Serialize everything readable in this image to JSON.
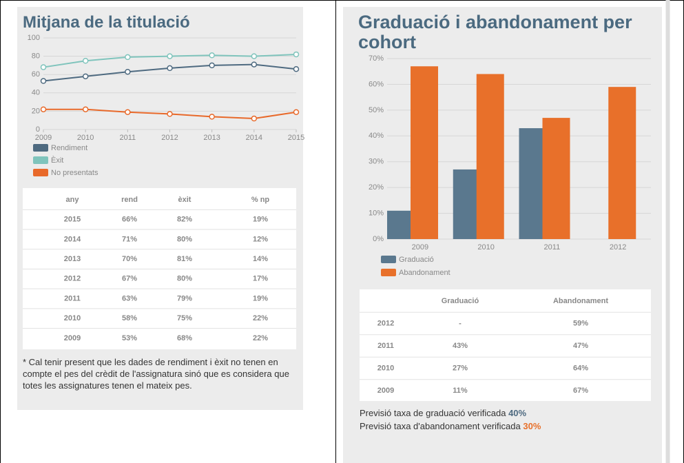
{
  "chart_data": [
    {
      "type": "line",
      "title": "Mitjana de la titulació",
      "x": [
        2009,
        2010,
        2011,
        2012,
        2013,
        2014,
        2015
      ],
      "xlim": [
        2009,
        2015
      ],
      "xticks": [
        2009,
        2010,
        2011,
        2012,
        2013,
        2014,
        2015
      ],
      "ylim": [
        0,
        100
      ],
      "yticks": [
        0,
        20,
        40,
        60,
        80,
        100
      ],
      "grid": true,
      "series": [
        {
          "name": "Rendiment",
          "color": "#4e6a80",
          "values": [
            53,
            58,
            63,
            67,
            70,
            71,
            66
          ]
        },
        {
          "name": "Èxit",
          "color": "#7fc4bc",
          "values": [
            68,
            75,
            79,
            80,
            81,
            80,
            82
          ]
        },
        {
          "name": "No presentats",
          "color": "#e8692a",
          "values": [
            22,
            22,
            19,
            17,
            14,
            12,
            19
          ]
        }
      ]
    },
    {
      "type": "bar",
      "title": "Graduació i abandonament per cohort",
      "categories": [
        "2009",
        "2010",
        "2011",
        "2012"
      ],
      "ylim": [
        0,
        70
      ],
      "yticks": [
        {
          "value": 0,
          "label": "0%"
        },
        {
          "value": 10,
          "label": "10%"
        },
        {
          "value": 20,
          "label": "20%"
        },
        {
          "value": 30,
          "label": "30%"
        },
        {
          "value": 40,
          "label": "40%"
        },
        {
          "value": 50,
          "label": "50%"
        },
        {
          "value": 60,
          "label": "60%"
        },
        {
          "value": 70,
          "label": "70%"
        }
      ],
      "grid": true,
      "series": [
        {
          "name": "Graduació",
          "color": "#5a788e",
          "values": [
            11,
            27,
            43,
            null
          ]
        },
        {
          "name": "Abandonament",
          "color": "#e8702a",
          "values": [
            67,
            64,
            47,
            59
          ]
        }
      ]
    }
  ],
  "tables": [
    {
      "header": [
        "any",
        "rend",
        "èxit",
        "% np"
      ],
      "rows": [
        [
          "2015",
          "66%",
          "82%",
          "19%"
        ],
        [
          "2014",
          "71%",
          "80%",
          "12%"
        ],
        [
          "2013",
          "70%",
          "81%",
          "14%"
        ],
        [
          "2012",
          "67%",
          "80%",
          "17%"
        ],
        [
          "2011",
          "63%",
          "79%",
          "19%"
        ],
        [
          "2010",
          "58%",
          "75%",
          "22%"
        ],
        [
          "2009",
          "53%",
          "68%",
          "22%"
        ]
      ]
    },
    {
      "header": [
        "",
        "Graduació",
        "Abandonament"
      ],
      "rows": [
        [
          "2012",
          "-",
          "59%"
        ],
        [
          "2011",
          "43%",
          "47%"
        ],
        [
          "2010",
          "27%",
          "64%"
        ],
        [
          "2009",
          "11%",
          "67%"
        ]
      ]
    }
  ],
  "note": "* Cal tenir present que les dades de rendiment i èxit no tenen en compte el pes del crèdit de l'assignatura sinó que es considera que totes les assignatures tenen el mateix pes.",
  "forecast": [
    {
      "text": "Previsió taxa de graduació verificada",
      "value": "40%"
    },
    {
      "text": "Previsió taxa d'abandonament verificada",
      "value": "30%"
    }
  ]
}
